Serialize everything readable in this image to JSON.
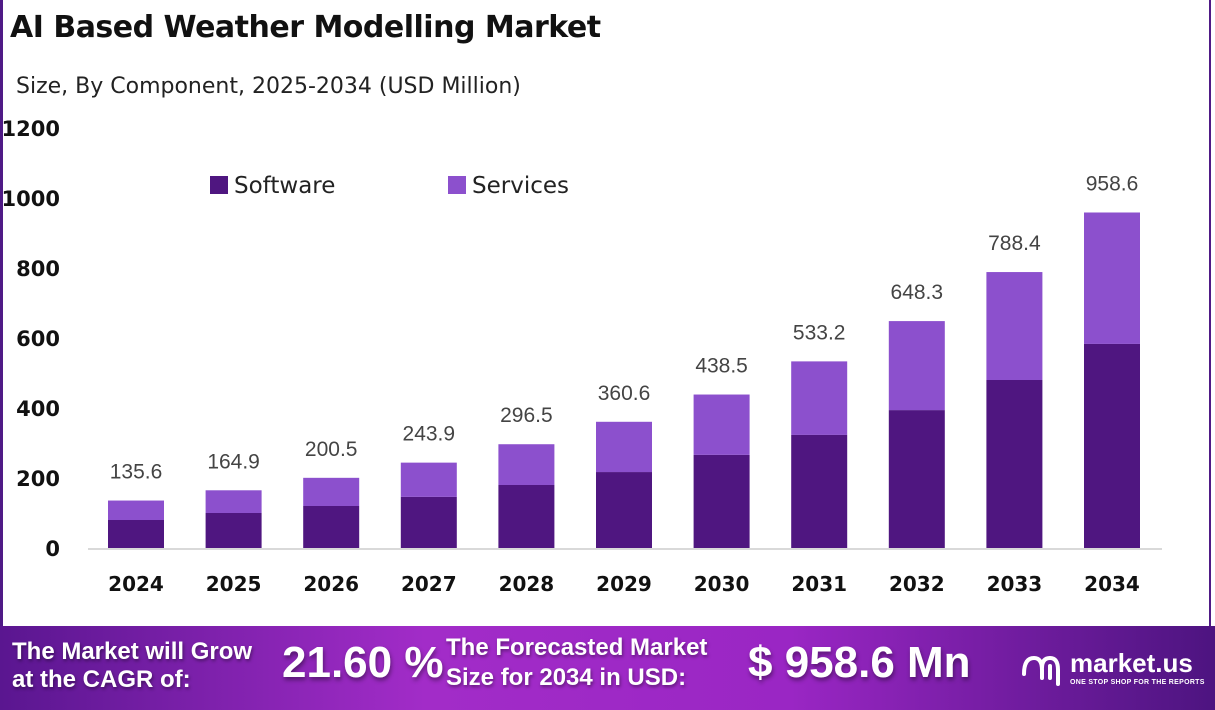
{
  "chart_data": {
    "type": "bar",
    "stacked": true,
    "title": "AI Based Weather Modelling Market",
    "subtitle": "Size, By Component, 2025-2034 (USD Million)",
    "categories": [
      "2024",
      "2025",
      "2026",
      "2027",
      "2028",
      "2029",
      "2030",
      "2031",
      "2032",
      "2033",
      "2034"
    ],
    "series": [
      {
        "name": "Software",
        "color": "#4f1680",
        "values": [
          80,
          100,
          120,
          146,
          180,
          217,
          266,
          323,
          394,
          480,
          583
        ]
      },
      {
        "name": "Services",
        "color": "#8c50cd",
        "values": [
          55.6,
          64.9,
          80.5,
          97.9,
          116.5,
          143.6,
          172.5,
          210.2,
          254.3,
          308.4,
          375.6
        ]
      }
    ],
    "totals": [
      "135.6",
      "164.9",
      "200.5",
      "243.9",
      "296.5",
      "360.6",
      "438.5",
      "533.2",
      "648.3",
      "788.4",
      "958.6"
    ],
    "yticks": [
      "0",
      "200",
      "400",
      "600",
      "800",
      "1000",
      "1200"
    ],
    "ylim": [
      0,
      1200
    ],
    "grid": false,
    "legend_placement": "top-left"
  },
  "footer": {
    "cagr_label_1": "The Market will Grow",
    "cagr_label_2": "at the CAGR of:",
    "cagr_value": "21.60 %",
    "forecast_label_1": "The Forecasted Market",
    "forecast_label_2": "Size for 2034 in USD:",
    "forecast_value": "$ 958.6 Mn",
    "logo_name": "market.us",
    "logo_tagline": "ONE STOP SHOP FOR THE REPORTS"
  }
}
